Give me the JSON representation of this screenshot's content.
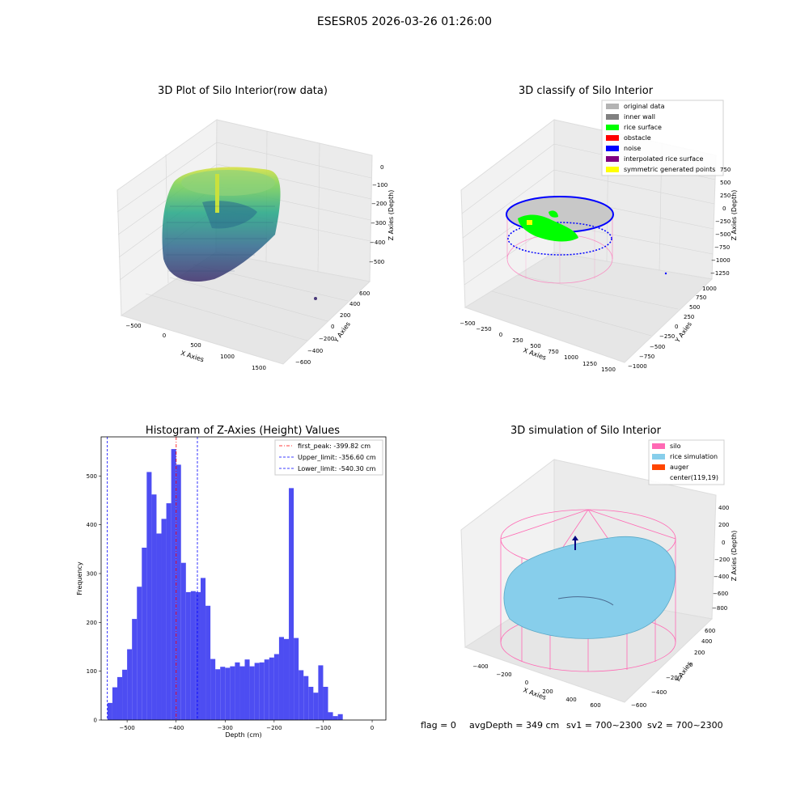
{
  "figure": {
    "suptitle": "ESESR05 2026-03-26 01:26:00",
    "footer": {
      "flag": "flag = 0",
      "avg": "avgDepth = 349 cm",
      "sv1": "sv1 = 700~2300",
      "sv2": "sv2 = 700~2300"
    }
  },
  "colors": {
    "histogram_bar": "#4d4df2",
    "first_peak_line": "#ff0000",
    "limit_line": "#0000ff",
    "original_data": "#b3b3b3",
    "inner_wall": "#808080",
    "rice_surface": "#00ff00",
    "obstacle": "#ff0000",
    "noise": "#0000ff",
    "interpolated_rice_surface": "#800080",
    "symmetric_generated_points": "#ffff00",
    "silo": "#ff69b4",
    "rice_simulation": "#87ceeb",
    "auger": "#ff4500"
  },
  "chart_data": [
    {
      "type": "scatter",
      "subtype": "3d",
      "title": "3D Plot of Silo Interior(row data)",
      "xlabel": "X Axies",
      "ylabel": "Y Axies",
      "zlabel": "Z Axies (Depth)",
      "x_ticks": [
        "−500",
        "0",
        "500",
        "1000",
        "1500"
      ],
      "y_ticks": [
        "−600",
        "−400",
        "−200",
        "0",
        "200",
        "400",
        "600"
      ],
      "z_ticks": [
        "−500",
        "−400",
        "−300",
        "−200",
        "−100",
        "0"
      ],
      "colormap": "viridis"
    },
    {
      "type": "scatter",
      "subtype": "3d",
      "title": "3D classify of Silo Interior",
      "xlabel": "X Axies",
      "ylabel": "Y Axies",
      "zlabel": "Z Axies (Depth)",
      "x_ticks": [
        "−500",
        "−250",
        "0",
        "250",
        "500",
        "750",
        "1000",
        "1250",
        "1500"
      ],
      "y_ticks": [
        "−1000",
        "−750",
        "−500",
        "−250",
        "0",
        "250",
        "500",
        "750",
        "1000"
      ],
      "z_ticks": [
        "−1250",
        "−1000",
        "−750",
        "−500",
        "−250",
        "0",
        "250",
        "500",
        "750"
      ],
      "legend": [
        "original data",
        "inner wall",
        "rice surface",
        "obstacle",
        "noise",
        "interpolated rice surface",
        "symmetric generated points"
      ],
      "legend_loc": "upper right"
    },
    {
      "type": "bar",
      "subtype": "histogram",
      "title": "Histogram of Z-Axies (Height) Values",
      "xlabel": "Depth (cm)",
      "ylabel": "Frequency",
      "xlim": [
        -553,
        28
      ],
      "ylim": [
        0,
        580
      ],
      "x_ticks": [
        -500,
        -400,
        -300,
        -200,
        -100,
        0
      ],
      "x_tick_labels": [
        "−500",
        "−400",
        "−300",
        "−200",
        "−100",
        "0"
      ],
      "y_ticks": [
        0,
        100,
        200,
        300,
        400,
        500
      ],
      "bin_start": -540,
      "bin_width": 10,
      "values": [
        35,
        67,
        88,
        103,
        145,
        207,
        273,
        353,
        508,
        462,
        382,
        412,
        444,
        555,
        523,
        322,
        262,
        264,
        262,
        291,
        234,
        125,
        104,
        109,
        107,
        110,
        118,
        110,
        124,
        110,
        117,
        118,
        124,
        128,
        135,
        170,
        166,
        475,
        168,
        102,
        90,
        68,
        56,
        112,
        68,
        16,
        8,
        12
      ],
      "vlines": [
        {
          "label": "first_peak: -399.82 cm",
          "x": -399.82,
          "style": "dash-dot",
          "color_key": "first_peak_line"
        },
        {
          "label": "Upper_limit: -356.60 cm",
          "x": -356.6,
          "style": "dash",
          "color_key": "limit_line"
        },
        {
          "label": "Lower_limit: -540.30 cm",
          "x": -540.3,
          "style": "dash",
          "color_key": "limit_line"
        }
      ],
      "legend_loc": "upper right"
    },
    {
      "type": "scatter",
      "subtype": "3d-surface",
      "title": "3D simulation of Silo Interior",
      "xlabel": "X Axies",
      "ylabel": "Y Axies",
      "zlabel": "Z Axies (Depth)",
      "x_ticks": [
        "−400",
        "−200",
        "0",
        "200",
        "400",
        "600"
      ],
      "y_ticks": [
        "−600",
        "−400",
        "−200",
        "0",
        "200",
        "400",
        "600"
      ],
      "z_ticks": [
        "−800",
        "−600",
        "−400",
        "−200",
        "0",
        "200",
        "400"
      ],
      "legend": [
        "silo",
        "rice simulation",
        "auger",
        "center(119,19)"
      ],
      "legend_loc": "upper right"
    }
  ]
}
